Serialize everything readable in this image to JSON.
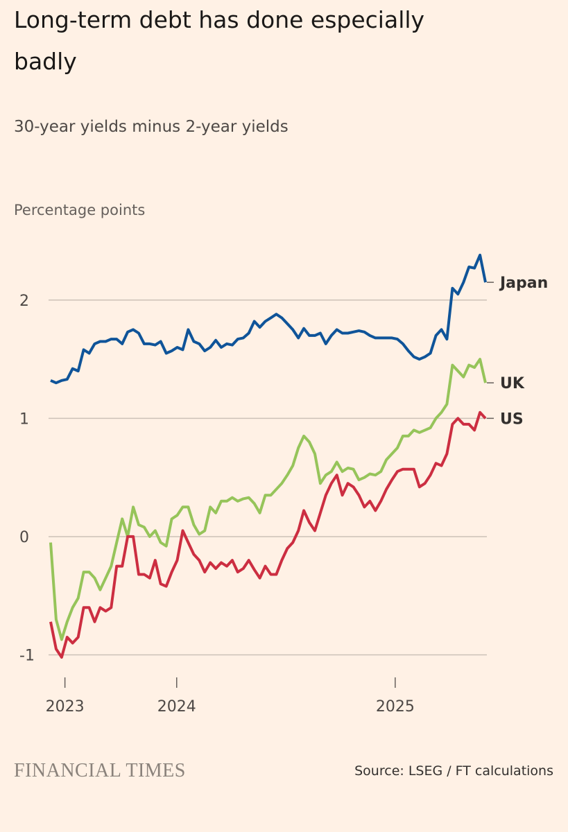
{
  "chart_data": {
    "type": "line",
    "title": "Long-term debt has done especially badly",
    "subtitle": "30-year yields minus 2-year yields",
    "y_label": "Percentage points",
    "x": [
      0,
      1,
      2,
      3,
      4,
      5,
      6,
      7,
      8,
      9,
      10,
      11,
      12,
      13,
      14,
      15,
      16,
      17,
      18,
      19,
      20,
      21,
      22,
      23,
      24,
      25,
      26,
      27,
      28,
      29,
      30,
      31,
      32,
      33,
      34,
      35,
      36,
      37,
      38,
      39,
      40,
      41,
      42,
      43,
      44,
      45,
      46,
      47,
      48,
      49,
      50,
      51,
      52,
      53,
      54,
      55,
      56,
      57,
      58,
      59,
      60,
      61,
      62,
      63,
      64,
      65,
      66,
      67,
      68,
      69,
      70,
      71,
      72,
      73,
      74,
      75,
      76,
      77,
      78,
      79
    ],
    "xlim": [
      0,
      79
    ],
    "xticks": [
      {
        "value": 2.6,
        "label": "2023"
      },
      {
        "value": 22.9,
        "label": "2024"
      },
      {
        "value": 62.6,
        "label": "2025"
      }
    ],
    "ylim": [
      -1.1,
      2.45
    ],
    "yticks": [
      -1,
      0,
      1,
      2
    ],
    "grid": true,
    "series": [
      {
        "name": "Japan",
        "color": "#0f5499",
        "values": [
          1.32,
          1.3,
          1.32,
          1.33,
          1.42,
          1.4,
          1.58,
          1.55,
          1.63,
          1.65,
          1.65,
          1.67,
          1.67,
          1.63,
          1.73,
          1.75,
          1.72,
          1.63,
          1.63,
          1.62,
          1.65,
          1.55,
          1.57,
          1.6,
          1.58,
          1.75,
          1.65,
          1.63,
          1.57,
          1.6,
          1.66,
          1.6,
          1.63,
          1.62,
          1.67,
          1.68,
          1.72,
          1.82,
          1.77,
          1.82,
          1.85,
          1.88,
          1.85,
          1.8,
          1.75,
          1.68,
          1.76,
          1.7,
          1.7,
          1.72,
          1.63,
          1.7,
          1.75,
          1.72,
          1.72,
          1.73,
          1.74,
          1.73,
          1.7,
          1.68,
          1.68,
          1.68,
          1.68,
          1.67,
          1.63,
          1.57,
          1.52,
          1.5,
          1.52,
          1.55,
          1.7,
          1.75,
          1.67,
          2.1,
          2.05,
          2.15,
          2.28,
          2.27,
          2.38,
          2.15
        ]
      },
      {
        "name": "UK",
        "color": "#96c45a",
        "values": [
          -0.05,
          -0.7,
          -0.87,
          -0.72,
          -0.6,
          -0.52,
          -0.3,
          -0.3,
          -0.35,
          -0.45,
          -0.35,
          -0.25,
          -0.05,
          0.15,
          0,
          0.25,
          0.1,
          0.08,
          0,
          0.05,
          -0.05,
          -0.08,
          0.15,
          0.18,
          0.25,
          0.25,
          0.1,
          0.02,
          0.05,
          0.25,
          0.2,
          0.3,
          0.3,
          0.33,
          0.3,
          0.32,
          0.33,
          0.28,
          0.2,
          0.35,
          0.35,
          0.4,
          0.45,
          0.52,
          0.6,
          0.75,
          0.85,
          0.8,
          0.7,
          0.45,
          0.52,
          0.55,
          0.63,
          0.55,
          0.58,
          0.57,
          0.48,
          0.5,
          0.53,
          0.52,
          0.55,
          0.65,
          0.7,
          0.75,
          0.85,
          0.85,
          0.9,
          0.88,
          0.9,
          0.92,
          1.0,
          1.05,
          1.12,
          1.45,
          1.4,
          1.35,
          1.45,
          1.43,
          1.5,
          1.3
        ]
      },
      {
        "name": "US",
        "color": "#cc2e41",
        "values": [
          -0.72,
          -0.95,
          -1.02,
          -0.85,
          -0.9,
          -0.85,
          -0.6,
          -0.6,
          -0.72,
          -0.6,
          -0.63,
          -0.6,
          -0.25,
          -0.25,
          0,
          0,
          -0.32,
          -0.32,
          -0.35,
          -0.2,
          -0.4,
          -0.42,
          -0.3,
          -0.2,
          0.05,
          -0.05,
          -0.15,
          -0.2,
          -0.3,
          -0.22,
          -0.27,
          -0.22,
          -0.25,
          -0.2,
          -0.3,
          -0.27,
          -0.2,
          -0.28,
          -0.35,
          -0.25,
          -0.32,
          -0.32,
          -0.2,
          -0.1,
          -0.05,
          0.05,
          0.22,
          0.12,
          0.05,
          0.2,
          0.35,
          0.45,
          0.52,
          0.35,
          0.45,
          0.42,
          0.35,
          0.25,
          0.3,
          0.22,
          0.3,
          0.4,
          0.48,
          0.55,
          0.57,
          0.57,
          0.57,
          0.42,
          0.45,
          0.52,
          0.62,
          0.6,
          0.7,
          0.95,
          1.0,
          0.95,
          0.95,
          0.9,
          1.05,
          1.0
        ]
      }
    ]
  },
  "footer": {
    "logo": "FINANCIAL TIMES",
    "source": "Source: LSEG / FT calculations"
  }
}
